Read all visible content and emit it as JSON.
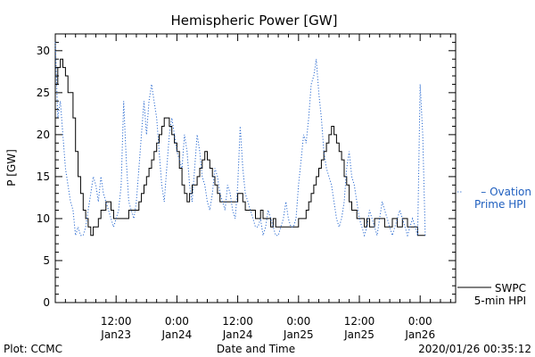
{
  "chart_data": {
    "type": "line",
    "title": "Hemispheric Power [GW]",
    "xlabel": "Date and Time",
    "ylabel": "P [GW]",
    "ylim": [
      0,
      32
    ],
    "xlim_hours": [
      0,
      79
    ],
    "y_ticks": [
      0,
      5,
      10,
      15,
      20,
      25,
      30
    ],
    "x_ticks": [
      {
        "hour": 12,
        "time": "12:00",
        "date": "Jan23"
      },
      {
        "hour": 24,
        "time": "0:00",
        "date": "Jan24"
      },
      {
        "hour": 36,
        "time": "12:00",
        "date": "Jan24"
      },
      {
        "hour": 48,
        "time": "0:00",
        "date": "Jan25"
      },
      {
        "hour": 60,
        "time": "12:00",
        "date": "Jan25"
      },
      {
        "hour": 72,
        "time": "0:00",
        "date": "Jan26"
      }
    ],
    "grid": false,
    "series": [
      {
        "name": "SWPC 5-min HPI",
        "legend_lines": [
          "SWPC",
          "5-min HPI"
        ],
        "color": "#000000",
        "style": "solid",
        "points": [
          [
            0,
            26
          ],
          [
            0.5,
            28
          ],
          [
            1,
            29
          ],
          [
            1.5,
            28
          ],
          [
            2,
            27
          ],
          [
            2.5,
            25
          ],
          [
            3,
            25
          ],
          [
            3.5,
            22
          ],
          [
            4,
            18
          ],
          [
            4.5,
            15
          ],
          [
            5,
            13
          ],
          [
            5.5,
            11
          ],
          [
            6,
            10
          ],
          [
            6.5,
            9
          ],
          [
            7,
            8
          ],
          [
            7.5,
            9
          ],
          [
            8,
            9
          ],
          [
            8.5,
            10
          ],
          [
            9,
            11
          ],
          [
            9.5,
            11
          ],
          [
            10,
            12
          ],
          [
            10.5,
            12
          ],
          [
            11,
            11
          ],
          [
            11.5,
            10
          ],
          [
            12,
            10
          ],
          [
            13,
            10
          ],
          [
            14,
            10
          ],
          [
            14.5,
            11
          ],
          [
            15,
            11
          ],
          [
            16,
            11
          ],
          [
            16.5,
            12
          ],
          [
            17,
            13
          ],
          [
            17.5,
            14
          ],
          [
            18,
            15
          ],
          [
            18.5,
            16
          ],
          [
            19,
            17
          ],
          [
            19.5,
            18
          ],
          [
            20,
            19
          ],
          [
            20.5,
            20
          ],
          [
            21,
            21
          ],
          [
            21.5,
            22
          ],
          [
            22,
            22
          ],
          [
            22.5,
            21
          ],
          [
            23,
            20
          ],
          [
            23.5,
            19
          ],
          [
            24,
            18
          ],
          [
            24.5,
            16
          ],
          [
            25,
            14
          ],
          [
            25.5,
            13
          ],
          [
            26,
            12
          ],
          [
            26.5,
            13
          ],
          [
            27,
            14
          ],
          [
            27.5,
            14
          ],
          [
            28,
            15
          ],
          [
            28.5,
            16
          ],
          [
            29,
            17
          ],
          [
            29.5,
            18
          ],
          [
            30,
            17
          ],
          [
            30.5,
            16
          ],
          [
            31,
            15
          ],
          [
            31.5,
            14
          ],
          [
            32,
            13
          ],
          [
            32.5,
            12
          ],
          [
            33,
            12
          ],
          [
            34,
            12
          ],
          [
            35,
            12
          ],
          [
            35.5,
            12
          ],
          [
            36,
            13
          ],
          [
            36.5,
            13
          ],
          [
            37,
            12
          ],
          [
            37.5,
            11
          ],
          [
            38,
            11
          ],
          [
            39,
            11
          ],
          [
            39.5,
            10
          ],
          [
            40,
            10
          ],
          [
            40.5,
            11
          ],
          [
            41,
            10
          ],
          [
            42,
            10
          ],
          [
            42.5,
            9
          ],
          [
            43,
            10
          ],
          [
            43.5,
            9
          ],
          [
            44,
            9
          ],
          [
            45,
            9
          ],
          [
            46,
            9
          ],
          [
            47,
            9
          ],
          [
            48,
            10
          ],
          [
            48.5,
            10
          ],
          [
            49,
            10
          ],
          [
            49.5,
            11
          ],
          [
            50,
            12
          ],
          [
            50.5,
            13
          ],
          [
            51,
            14
          ],
          [
            51.5,
            15
          ],
          [
            52,
            16
          ],
          [
            52.5,
            17
          ],
          [
            53,
            18
          ],
          [
            53.5,
            19
          ],
          [
            54,
            20
          ],
          [
            54.5,
            21
          ],
          [
            55,
            20
          ],
          [
            55.5,
            19
          ],
          [
            56,
            18
          ],
          [
            56.5,
            17
          ],
          [
            57,
            15
          ],
          [
            57.5,
            14
          ],
          [
            58,
            12
          ],
          [
            58.5,
            11
          ],
          [
            59,
            11
          ],
          [
            59.5,
            10
          ],
          [
            60,
            10
          ],
          [
            60.5,
            10
          ],
          [
            61,
            9
          ],
          [
            61.5,
            10
          ],
          [
            62,
            9
          ],
          [
            63,
            10
          ],
          [
            63.5,
            10
          ],
          [
            64,
            10
          ],
          [
            65,
            9
          ],
          [
            66,
            9
          ],
          [
            66.5,
            10
          ],
          [
            67,
            10
          ],
          [
            67.5,
            9
          ],
          [
            68,
            9
          ],
          [
            68.5,
            10
          ],
          [
            69,
            10
          ],
          [
            69.5,
            9
          ],
          [
            70,
            9
          ],
          [
            71,
            9
          ],
          [
            71.5,
            8
          ],
          [
            72,
            8
          ],
          [
            73,
            8
          ]
        ]
      },
      {
        "name": "Ovation Prime HPI",
        "legend_lines": [
          "– Ovation",
          "Prime HPI"
        ],
        "color": "#2a6ad0",
        "style": "dotted",
        "points": [
          [
            0,
            31
          ],
          [
            0.5,
            22
          ],
          [
            1,
            24
          ],
          [
            1.5,
            20
          ],
          [
            2,
            16
          ],
          [
            2.5,
            14
          ],
          [
            3,
            12
          ],
          [
            3.5,
            11
          ],
          [
            4,
            8
          ],
          [
            4.5,
            9
          ],
          [
            5,
            8
          ],
          [
            5.5,
            8
          ],
          [
            6,
            9
          ],
          [
            6.5,
            11
          ],
          [
            7,
            13
          ],
          [
            7.5,
            15
          ],
          [
            8,
            14
          ],
          [
            8.5,
            12
          ],
          [
            9,
            15
          ],
          [
            9.5,
            13
          ],
          [
            10,
            12
          ],
          [
            10.5,
            11
          ],
          [
            11,
            10
          ],
          [
            11.5,
            9
          ],
          [
            12,
            10
          ],
          [
            12.5,
            11
          ],
          [
            13,
            14
          ],
          [
            13.5,
            24
          ],
          [
            14,
            17
          ],
          [
            14.5,
            12
          ],
          [
            15,
            11
          ],
          [
            15.5,
            10
          ],
          [
            16,
            12
          ],
          [
            16.5,
            16
          ],
          [
            17,
            20
          ],
          [
            17.5,
            24
          ],
          [
            18,
            20
          ],
          [
            18.5,
            24
          ],
          [
            19,
            26
          ],
          [
            19.5,
            24
          ],
          [
            20,
            22
          ],
          [
            20.5,
            18
          ],
          [
            21,
            14
          ],
          [
            21.5,
            12
          ],
          [
            22,
            16
          ],
          [
            22.5,
            20
          ],
          [
            23,
            22
          ],
          [
            23.5,
            20
          ],
          [
            24,
            18
          ],
          [
            24.5,
            17
          ],
          [
            25,
            16
          ],
          [
            25.5,
            20
          ],
          [
            26,
            18
          ],
          [
            26.5,
            14
          ],
          [
            27,
            12
          ],
          [
            27.5,
            16
          ],
          [
            28,
            20
          ],
          [
            28.5,
            18
          ],
          [
            29,
            15
          ],
          [
            29.5,
            14
          ],
          [
            30,
            12
          ],
          [
            30.5,
            11
          ],
          [
            31,
            13
          ],
          [
            31.5,
            16
          ],
          [
            32,
            15
          ],
          [
            32.5,
            13
          ],
          [
            33,
            12
          ],
          [
            33.5,
            11
          ],
          [
            34,
            14
          ],
          [
            34.5,
            13
          ],
          [
            35,
            11
          ],
          [
            35.5,
            10
          ],
          [
            36,
            14
          ],
          [
            36.5,
            21
          ],
          [
            37,
            16
          ],
          [
            37.5,
            13
          ],
          [
            38,
            12
          ],
          [
            38.5,
            11
          ],
          [
            39,
            10
          ],
          [
            39.5,
            9
          ],
          [
            40,
            9
          ],
          [
            40.5,
            10
          ],
          [
            41,
            8
          ],
          [
            41.5,
            9
          ],
          [
            42,
            11
          ],
          [
            42.5,
            10
          ],
          [
            43,
            9
          ],
          [
            43.5,
            8
          ],
          [
            44,
            8
          ],
          [
            44.5,
            9
          ],
          [
            45,
            10
          ],
          [
            45.5,
            12
          ],
          [
            46,
            10
          ],
          [
            46.5,
            9
          ],
          [
            47,
            9
          ],
          [
            47.5,
            10
          ],
          [
            48,
            14
          ],
          [
            48.5,
            17
          ],
          [
            49,
            20
          ],
          [
            49.5,
            19
          ],
          [
            50,
            22
          ],
          [
            50.5,
            26
          ],
          [
            51,
            27
          ],
          [
            51.5,
            29
          ],
          [
            52,
            25
          ],
          [
            52.5,
            22
          ],
          [
            53,
            18
          ],
          [
            53.5,
            16
          ],
          [
            54,
            15
          ],
          [
            54.5,
            14
          ],
          [
            55,
            12
          ],
          [
            55.5,
            10
          ],
          [
            56,
            9
          ],
          [
            56.5,
            10
          ],
          [
            57,
            12
          ],
          [
            57.5,
            16
          ],
          [
            58,
            18
          ],
          [
            58.5,
            15
          ],
          [
            59,
            14
          ],
          [
            59.5,
            12
          ],
          [
            60,
            10
          ],
          [
            60.5,
            9
          ],
          [
            61,
            8
          ],
          [
            61.5,
            9
          ],
          [
            62,
            11
          ],
          [
            62.5,
            10
          ],
          [
            63,
            9
          ],
          [
            63.5,
            8
          ],
          [
            64,
            10
          ],
          [
            64.5,
            12
          ],
          [
            65,
            11
          ],
          [
            65.5,
            10
          ],
          [
            66,
            9
          ],
          [
            66.5,
            8
          ],
          [
            67,
            9
          ],
          [
            67.5,
            10
          ],
          [
            68,
            11
          ],
          [
            68.5,
            10
          ],
          [
            69,
            9
          ],
          [
            69.5,
            8
          ],
          [
            70,
            9
          ],
          [
            70.5,
            10
          ],
          [
            71,
            9
          ],
          [
            71.5,
            8
          ],
          [
            72,
            26
          ],
          [
            72.5,
            20
          ],
          [
            73,
            8
          ]
        ]
      }
    ]
  },
  "footer": {
    "left": "Plot: CCMC",
    "center": "Date and Time",
    "right": "2020/01/26 00:35:12"
  }
}
